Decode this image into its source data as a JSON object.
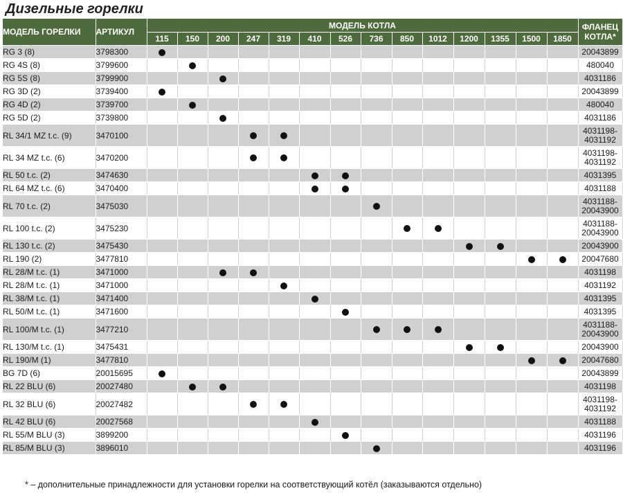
{
  "title": "Дизельные горелки",
  "headers": {
    "model": "МОДЕЛЬ ГОРЕЛКИ",
    "article": "АРТИКУЛ",
    "boiler_model": "МОДЕЛЬ КОТЛА",
    "flange": "ФЛАНЕЦ КОТЛА*",
    "boiler_columns": [
      "115",
      "150",
      "200",
      "247",
      "319",
      "410",
      "526",
      "736",
      "850",
      "1012",
      "1200",
      "1355",
      "1500",
      "1850"
    ]
  },
  "rows": [
    {
      "model": "RG 3 (8)",
      "article": "3798300",
      "flange": [
        "20043899"
      ],
      "dots": [
        "115"
      ]
    },
    {
      "model": "RG 4S (8)",
      "article": "3799600",
      "flange": [
        "480040"
      ],
      "dots": [
        "150"
      ]
    },
    {
      "model": "RG 5S (8)",
      "article": "3799900",
      "flange": [
        "4031186"
      ],
      "dots": [
        "200"
      ]
    },
    {
      "model": "RG 3D (2)",
      "article": "3739400",
      "flange": [
        "20043899"
      ],
      "dots": [
        "115"
      ]
    },
    {
      "model": "RG 4D (2)",
      "article": "3739700",
      "flange": [
        "480040"
      ],
      "dots": [
        "150"
      ]
    },
    {
      "model": "RG 5D (2)",
      "article": "3739800",
      "flange": [
        "4031186"
      ],
      "dots": [
        "200"
      ]
    },
    {
      "model": "RL 34/1 MZ t.c. (9)",
      "article": "3470100",
      "flange": [
        "4031198-",
        "4031192"
      ],
      "dots": [
        "247",
        "319"
      ]
    },
    {
      "model": "RL 34 MZ t.c. (6)",
      "article": "3470200",
      "flange": [
        "4031198-",
        "4031192"
      ],
      "dots": [
        "247",
        "319"
      ]
    },
    {
      "model": "RL 50 t.c. (2)",
      "article": "3474630",
      "flange": [
        "4031395"
      ],
      "dots": [
        "410",
        "526"
      ]
    },
    {
      "model": "RL 64 MZ t.c. (6)",
      "article": "3470400",
      "flange": [
        "4031188"
      ],
      "dots": [
        "410",
        "526"
      ]
    },
    {
      "model": "RL 70 t.c. (2)",
      "article": "3475030",
      "flange": [
        "4031188-",
        "20043900"
      ],
      "dots": [
        "736"
      ]
    },
    {
      "model": "RL 100 t.c. (2)",
      "article": "3475230",
      "flange": [
        "4031188-",
        "20043900"
      ],
      "dots": [
        "850",
        "1012"
      ]
    },
    {
      "model": "RL 130 t.c. (2)",
      "article": "3475430",
      "flange": [
        "20043900"
      ],
      "dots": [
        "1200",
        "1355"
      ]
    },
    {
      "model": "RL 190 (2)",
      "article": "3477810",
      "flange": [
        "20047680"
      ],
      "dots": [
        "1500",
        "1850"
      ]
    },
    {
      "model": "RL 28/M t.c. (1)",
      "article": "3471000",
      "flange": [
        "4031198"
      ],
      "dots": [
        "200",
        "247"
      ]
    },
    {
      "model": "RL 28/M t.c. (1)",
      "article": "3471000",
      "flange": [
        "4031192"
      ],
      "dots": [
        "319"
      ]
    },
    {
      "model": "RL 38/M t.c. (1)",
      "article": "3471400",
      "flange": [
        "4031395"
      ],
      "dots": [
        "410"
      ]
    },
    {
      "model": "RL 50/M t.c. (1)",
      "article": "3471600",
      "flange": [
        "4031395"
      ],
      "dots": [
        "526"
      ]
    },
    {
      "model": "RL 100/M t.c. (1)",
      "article": "3477210",
      "flange": [
        "4031188-",
        "20043900"
      ],
      "dots": [
        "736",
        "850",
        "1012"
      ]
    },
    {
      "model": "RL 130/M t.c. (1)",
      "article": "3475431",
      "flange": [
        "20043900"
      ],
      "dots": [
        "1200",
        "1355"
      ]
    },
    {
      "model": "RL 190/M (1)",
      "article": "3477810",
      "flange": [
        "20047680"
      ],
      "dots": [
        "1500",
        "1850"
      ]
    },
    {
      "model": "BG 7D (6)",
      "article": "20015695",
      "flange": [
        "20043899"
      ],
      "dots": [
        "115"
      ]
    },
    {
      "model": "RL 22 BLU (6)",
      "article": "20027480",
      "flange": [
        "4031198"
      ],
      "dots": [
        "150",
        "200"
      ]
    },
    {
      "model": "RL 32 BLU (6)",
      "article": "20027482",
      "flange": [
        "4031198-",
        "4031192"
      ],
      "dots": [
        "247",
        "319"
      ]
    },
    {
      "model": "RL 42 BLU (6)",
      "article": "20027568",
      "flange": [
        "4031188"
      ],
      "dots": [
        "410"
      ]
    },
    {
      "model": "RL 55/M BLU (3)",
      "article": "3899200",
      "flange": [
        "4031196"
      ],
      "dots": [
        "526"
      ]
    },
    {
      "model": "RL 85/M BLU (3)",
      "article": "3896010",
      "flange": [
        "4031196"
      ],
      "dots": [
        "736"
      ]
    }
  ],
  "footnote": "* – дополнительные принадлежности для установки горелки на соответствующий котёл (заказываются отдельно)",
  "colors": {
    "header_bg": "#4d6b3c",
    "row_gray": "#d0d0d0",
    "dot": "#111111"
  }
}
